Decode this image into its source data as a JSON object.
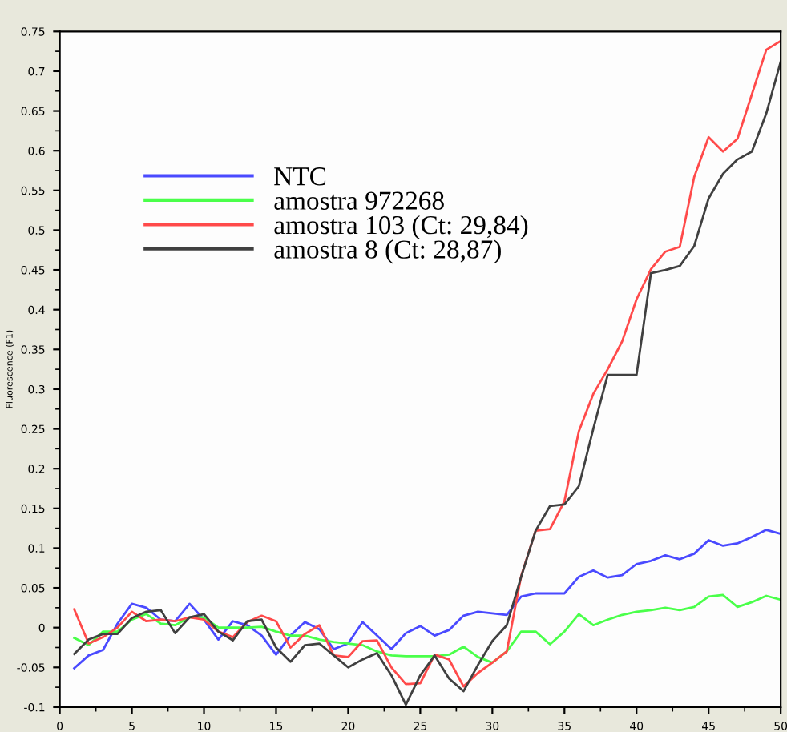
{
  "chart_data": {
    "type": "line",
    "ylabel": "Fluorescence (F1)",
    "x": [
      1,
      2,
      3,
      4,
      5,
      6,
      7,
      8,
      9,
      10,
      11,
      12,
      13,
      14,
      15,
      16,
      17,
      18,
      19,
      20,
      21,
      22,
      23,
      24,
      25,
      26,
      27,
      28,
      29,
      30,
      31,
      32,
      33,
      34,
      35,
      36,
      37,
      38,
      39,
      40,
      41,
      42,
      43,
      44,
      45,
      46,
      47,
      48,
      49,
      50
    ],
    "series": [
      {
        "name": "NTC",
        "color": "#4a4aff",
        "values": [
          -0.051,
          -0.035,
          -0.028,
          0.005,
          0.03,
          0.025,
          0.01,
          0.008,
          0.03,
          0.01,
          -0.015,
          0.008,
          0.003,
          -0.01,
          -0.034,
          -0.01,
          0.007,
          -0.002,
          -0.027,
          -0.02,
          0.007,
          -0.01,
          -0.027,
          -0.007,
          0.002,
          -0.01,
          -0.003,
          0.015,
          0.02,
          0.018,
          0.016,
          0.039,
          0.043,
          0.043,
          0.043,
          0.064,
          0.072,
          0.063,
          0.066,
          0.08,
          0.084,
          0.091,
          0.086,
          0.093,
          0.11,
          0.103,
          0.106,
          0.114,
          0.123,
          0.118
        ]
      },
      {
        "name": "amostra 972268",
        "color": "#4aff4a",
        "values": [
          -0.013,
          -0.022,
          -0.005,
          -0.005,
          0.01,
          0.017,
          0.005,
          0.003,
          0.013,
          0.013,
          0,
          0,
          0,
          0.001,
          -0.005,
          -0.01,
          -0.01,
          -0.015,
          -0.018,
          -0.02,
          -0.022,
          -0.03,
          -0.035,
          -0.036,
          -0.036,
          -0.036,
          -0.034,
          -0.024,
          -0.037,
          -0.044,
          -0.03,
          -0.005,
          -0.005,
          -0.021,
          -0.005,
          0.017,
          0.003,
          0.01,
          0.016,
          0.02,
          0.022,
          0.025,
          0.022,
          0.026,
          0.039,
          0.041,
          0.026,
          0.032,
          0.04,
          0.035
        ]
      },
      {
        "name": "amostra 103 (Ct: 29,84)",
        "color": "#ff4a4a",
        "values": [
          0.023,
          -0.02,
          -0.012,
          0,
          0.02,
          0.008,
          0.01,
          0.008,
          0.013,
          0.01,
          -0.005,
          -0.012,
          0.007,
          0.015,
          0.008,
          -0.025,
          -0.008,
          0.003,
          -0.035,
          -0.037,
          -0.017,
          -0.016,
          -0.05,
          -0.071,
          -0.07,
          -0.034,
          -0.04,
          -0.074,
          -0.057,
          -0.044,
          -0.03,
          0.065,
          0.122,
          0.124,
          0.159,
          0.247,
          0.294,
          0.325,
          0.36,
          0.413,
          0.451,
          0.473,
          0.479,
          0.567,
          0.617,
          0.599,
          0.615,
          0.671,
          0.727,
          0.738
        ]
      },
      {
        "name": "amostra 8 (Ct: 28,87)",
        "color": "#404040",
        "values": [
          -0.033,
          -0.015,
          -0.008,
          -0.008,
          0.012,
          0.02,
          0.022,
          -0.007,
          0.013,
          0.017,
          -0.005,
          -0.016,
          0.008,
          0.01,
          -0.025,
          -0.043,
          -0.022,
          -0.02,
          -0.035,
          -0.05,
          -0.04,
          -0.032,
          -0.06,
          -0.097,
          -0.06,
          -0.035,
          -0.064,
          -0.08,
          -0.047,
          -0.017,
          0.003,
          0.064,
          0.122,
          0.153,
          0.155,
          0.178,
          0.25,
          0.318,
          0.318,
          0.318,
          0.446,
          0.45,
          0.455,
          0.48,
          0.54,
          0.571,
          0.589,
          0.599,
          0.647,
          0.712
        ]
      }
    ],
    "xlim": [
      0,
      50
    ],
    "xticks": [
      0,
      5,
      10,
      15,
      20,
      25,
      30,
      35,
      40,
      45,
      50
    ],
    "ylim": [
      -0.1,
      0.75
    ],
    "yticks": [
      -0.1,
      -0.05,
      0,
      0.05,
      0.1,
      0.15,
      0.2,
      0.25,
      0.3,
      0.35,
      0.4,
      0.45,
      0.5,
      0.55,
      0.6,
      0.65,
      0.7,
      0.75
    ],
    "grid": false,
    "legend": "top left",
    "marker": "none",
    "line_style": "solid"
  }
}
